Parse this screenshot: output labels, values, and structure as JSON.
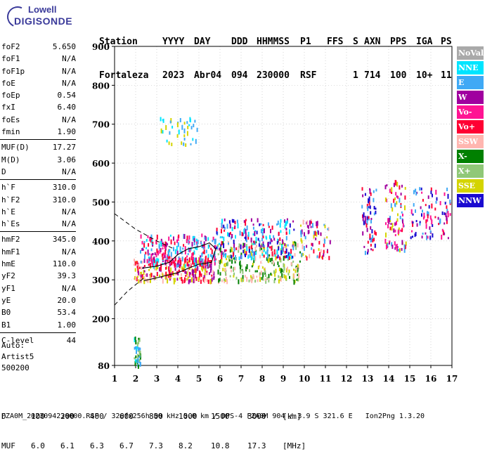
{
  "logo": {
    "line1": "Lowell",
    "line2": "DIGISONDE"
  },
  "header": {
    "labels": [
      "Station",
      "YYYY",
      "DAY",
      "DDD",
      "HHMMSS",
      "P1",
      "FFS",
      "S",
      "AXN",
      "PPS",
      "IGA",
      "PS"
    ],
    "values": [
      "Fortaleza",
      "2023",
      "Abr04",
      "094",
      "230000",
      "RSF",
      "",
      "1",
      "714",
      "100",
      "10+",
      "11"
    ]
  },
  "params": [
    {
      "name": "foF2",
      "value": "5.650"
    },
    {
      "name": "foF1",
      "value": "N/A"
    },
    {
      "name": "foF1p",
      "value": "N/A"
    },
    {
      "name": "foE",
      "value": "N/A"
    },
    {
      "name": "foEp",
      "value": "0.54"
    },
    {
      "name": "fxI",
      "value": "6.40"
    },
    {
      "name": "foEs",
      "value": "N/A"
    },
    {
      "name": "fmin",
      "value": "1.90"
    },
    {
      "sep": true
    },
    {
      "name": "MUF(D)",
      "value": "17.27"
    },
    {
      "name": "M(D)",
      "value": "3.06"
    },
    {
      "name": "D",
      "value": "N/A"
    },
    {
      "sep": true
    },
    {
      "name": "h`F",
      "value": "310.0"
    },
    {
      "name": "h`F2",
      "value": "310.0"
    },
    {
      "name": "h`E",
      "value": "N/A"
    },
    {
      "name": "h`Es",
      "value": "N/A"
    },
    {
      "sep": true
    },
    {
      "name": "hmF2",
      "value": "345.0"
    },
    {
      "name": "hmF1",
      "value": "N/A"
    },
    {
      "name": "hmE",
      "value": "110.0"
    },
    {
      "name": "yF2",
      "value": "39.3"
    },
    {
      "name": "yF1",
      "value": "N/A"
    },
    {
      "name": "yE",
      "value": "20.0"
    },
    {
      "name": "B0",
      "value": "53.4"
    },
    {
      "name": "B1",
      "value": "1.00"
    },
    {
      "sep": true
    },
    {
      "name": "C-level",
      "value": "44"
    }
  ],
  "auto": {
    "line1": "Auto:",
    "line2": "Artist5",
    "line3": "500200"
  },
  "legend": [
    {
      "label": "NoVal",
      "color": "#a9a9a9"
    },
    {
      "label": "NNE",
      "color": "#00e5ff"
    },
    {
      "label": "E",
      "color": "#3fa9f5"
    },
    {
      "label": "W",
      "color": "#a0009f"
    },
    {
      "label": "Vo-",
      "color": "#ff1493"
    },
    {
      "label": "Vo+",
      "color": "#ff0033"
    },
    {
      "label": "SSW",
      "color": "#ffb6b0"
    },
    {
      "label": "X-",
      "color": "#008000"
    },
    {
      "label": "X+",
      "color": "#90c878"
    },
    {
      "label": "SSE",
      "color": "#d4d400"
    },
    {
      "label": "NNW",
      "color": "#1a0ad0"
    }
  ],
  "footer": {
    "d_label": "D",
    "d_values": [
      "100",
      "200",
      "400",
      "600",
      "800",
      "1000",
      "1500",
      "3000"
    ],
    "d_unit": "[km]",
    "muf_label": "MUF",
    "muf_values": [
      "6.0",
      "6.1",
      "6.3",
      "6.7",
      "7.3",
      "8.2",
      "10.8",
      "17.3"
    ],
    "muf_unit": "[MHz]",
    "info": "FZA0M_2023094230000.RSF / 320fx256h 50 kHz 5.0 km / DPS-4 FZA0M 904 / 3.9 S 321.6 E   Ion2Png 1.3.20"
  },
  "chart_data": {
    "type": "scatter",
    "xlim": [
      1,
      17
    ],
    "ylim": [
      80,
      900
    ],
    "x_ticks": [
      "1",
      "2",
      "3",
      "4",
      "5",
      "6",
      "7",
      "8",
      "9",
      "10",
      "11",
      "12",
      "13",
      "14",
      "15",
      "16",
      "17"
    ],
    "y_ticks": [
      "80",
      "200",
      "300",
      "400",
      "500",
      "600",
      "700",
      "800",
      "900"
    ],
    "grid": true,
    "clusters": [
      {
        "fx": [
          1.9,
          5.7
        ],
        "hy": [
          300,
          360
        ],
        "colors": [
          "#d4d400",
          "#ffb6b0",
          "#a0009f",
          "#ff0033"
        ],
        "n": 260
      },
      {
        "fx": [
          2.2,
          5.8
        ],
        "hy": [
          340,
          420
        ],
        "colors": [
          "#3fa9f5",
          "#00e5ff",
          "#a0009f",
          "#ff1493",
          "#ff0033"
        ],
        "n": 240
      },
      {
        "fx": [
          5.8,
          9.8
        ],
        "hy": [
          300,
          400
        ],
        "colors": [
          "#d4d400",
          "#ffb6b0",
          "#008000",
          "#90c878"
        ],
        "n": 260
      },
      {
        "fx": [
          5.8,
          9.5
        ],
        "hy": [
          360,
          460
        ],
        "colors": [
          "#3fa9f5",
          "#00e5ff",
          "#a0009f",
          "#1a0ad0",
          "#ff0033"
        ],
        "n": 220
      },
      {
        "fx": [
          9.8,
          11.2
        ],
        "hy": [
          360,
          460
        ],
        "colors": [
          "#3fa9f5",
          "#a0009f",
          "#d4d400",
          "#ffb6b0",
          "#ff0033"
        ],
        "n": 70
      },
      {
        "fx": [
          12.7,
          13.4
        ],
        "hy": [
          370,
          540
        ],
        "colors": [
          "#3fa9f5",
          "#a0009f",
          "#1a0ad0",
          "#ff0033"
        ],
        "n": 60
      },
      {
        "fx": [
          13.8,
          14.8
        ],
        "hy": [
          380,
          560
        ],
        "colors": [
          "#3fa9f5",
          "#a0009f",
          "#ff1493",
          "#ff0033",
          "#d4d400"
        ],
        "n": 90
      },
      {
        "fx": [
          15.0,
          16.9
        ],
        "hy": [
          410,
          540
        ],
        "colors": [
          "#a0009f",
          "#ff1493",
          "#3fa9f5",
          "#1a0ad0",
          "#ff0033"
        ],
        "n": 90
      },
      {
        "fx": [
          3.1,
          4.9
        ],
        "hy": [
          650,
          720
        ],
        "colors": [
          "#d4d400",
          "#3fa9f5",
          "#00e5ff"
        ],
        "n": 40
      },
      {
        "fx": [
          1.9,
          2.2
        ],
        "hy": [
          82,
          155
        ],
        "colors": [
          "#008000",
          "#90c878",
          "#3fa9f5",
          "#00e5ff"
        ],
        "n": 40
      }
    ],
    "profile_dashed": [
      [
        1,
        470
      ],
      [
        2,
        430
      ],
      [
        3,
        400
      ],
      [
        3.8,
        380
      ]
    ],
    "profile_dashed2": [
      [
        1,
        235
      ],
      [
        1.6,
        270
      ],
      [
        2.4,
        305
      ]
    ],
    "trace_solid": [
      [
        2.3,
        330
      ],
      [
        3.0,
        335
      ],
      [
        3.6,
        345
      ],
      [
        4.0,
        365
      ],
      [
        4.5,
        380
      ],
      [
        5.0,
        385
      ],
      [
        5.5,
        395
      ],
      [
        5.8,
        380
      ],
      [
        5.6,
        345
      ],
      [
        5.0,
        340
      ],
      [
        4.5,
        330
      ],
      [
        4.0,
        318
      ],
      [
        3.5,
        312
      ],
      [
        3.0,
        305
      ],
      [
        2.4,
        298
      ]
    ]
  }
}
